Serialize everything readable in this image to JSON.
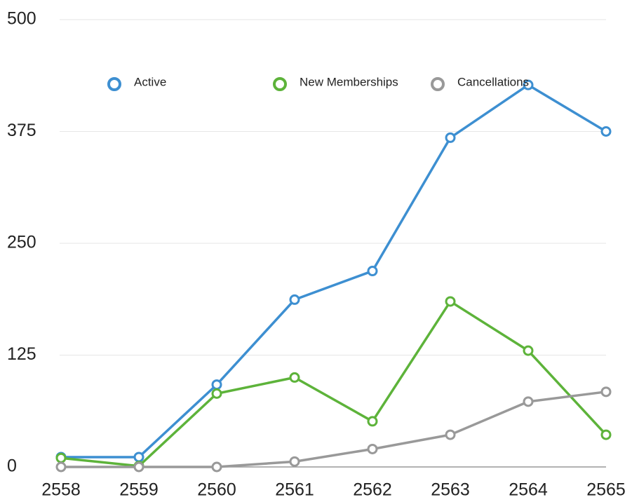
{
  "chart_data": {
    "type": "line",
    "categories": [
      "2558",
      "2559",
      "2560",
      "2561",
      "2562",
      "2563",
      "2564",
      "2565"
    ],
    "series": [
      {
        "name": "Active",
        "color": "#3d8fd1",
        "values": [
          11,
          11,
          92,
          187,
          219,
          368,
          427,
          375
        ]
      },
      {
        "name": "New Memberships",
        "color": "#5db33a",
        "values": [
          10,
          1,
          82,
          100,
          51,
          185,
          130,
          36
        ]
      },
      {
        "name": "Cancellations",
        "color": "#999999",
        "values": [
          0,
          0,
          0,
          6,
          20,
          36,
          73,
          84
        ]
      }
    ],
    "ylim": [
      0,
      500
    ],
    "yticks": [
      0,
      125,
      250,
      375,
      500
    ],
    "grid": true,
    "legend": "top"
  }
}
